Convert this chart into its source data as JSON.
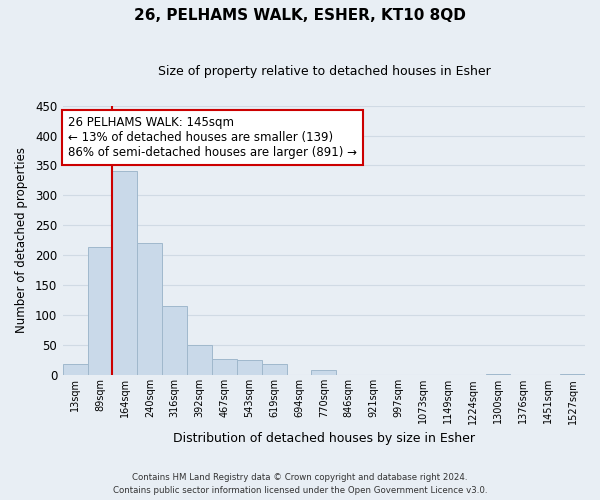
{
  "title": "26, PELHAMS WALK, ESHER, KT10 8QD",
  "subtitle": "Size of property relative to detached houses in Esher",
  "xlabel": "Distribution of detached houses by size in Esher",
  "ylabel": "Number of detached properties",
  "bin_labels": [
    "13sqm",
    "89sqm",
    "164sqm",
    "240sqm",
    "316sqm",
    "392sqm",
    "467sqm",
    "543sqm",
    "619sqm",
    "694sqm",
    "770sqm",
    "846sqm",
    "921sqm",
    "997sqm",
    "1073sqm",
    "1149sqm",
    "1224sqm",
    "1300sqm",
    "1376sqm",
    "1451sqm",
    "1527sqm"
  ],
  "bar_heights": [
    18,
    214,
    340,
    220,
    115,
    50,
    27,
    25,
    19,
    0,
    8,
    0,
    0,
    0,
    0,
    0,
    0,
    2,
    0,
    0,
    2
  ],
  "bar_color": "#c9d9e9",
  "bar_edge_color": "#a0b8cc",
  "vline_color": "#cc0000",
  "ylim": [
    0,
    450
  ],
  "yticks": [
    0,
    50,
    100,
    150,
    200,
    250,
    300,
    350,
    400,
    450
  ],
  "annotation_line1": "26 PELHAMS WALK: 145sqm",
  "annotation_line2": "← 13% of detached houses are smaller (139)",
  "annotation_line3": "86% of semi-detached houses are larger (891) →",
  "annotation_box_color": "#ffffff",
  "annotation_box_edgecolor": "#cc0000",
  "footer_line1": "Contains HM Land Registry data © Crown copyright and database right 2024.",
  "footer_line2": "Contains public sector information licensed under the Open Government Licence v3.0.",
  "background_color": "#e8eef4",
  "grid_color": "#d0dae4"
}
